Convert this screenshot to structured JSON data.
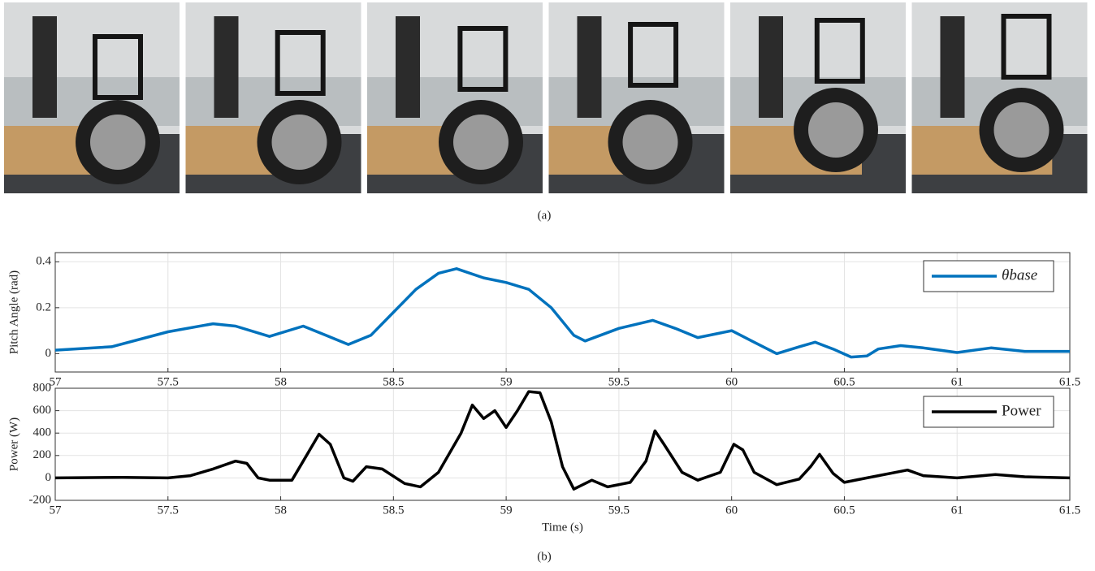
{
  "captions": [
    "(a)",
    "(b)"
  ],
  "chart_data": [
    {
      "type": "line",
      "ylabel": "Pitch Angle (rad)",
      "xlim": [
        57,
        61.5
      ],
      "ylim": [
        -0.08,
        0.44
      ],
      "xticks": [
        57,
        57.5,
        58,
        58.5,
        59,
        59.5,
        60,
        60.5,
        61,
        61.5
      ],
      "yticks": [
        0,
        0.2,
        0.4
      ],
      "grid": true,
      "legend": "upper right",
      "x": [
        57,
        57.25,
        57.5,
        57.7,
        57.8,
        57.95,
        58.1,
        58.2,
        58.3,
        58.4,
        58.5,
        58.6,
        58.7,
        58.78,
        58.9,
        59,
        59.1,
        59.2,
        59.3,
        59.35,
        59.5,
        59.65,
        59.75,
        59.85,
        60,
        60.1,
        60.2,
        60.3,
        60.37,
        60.45,
        60.53,
        60.6,
        60.65,
        60.75,
        60.85,
        61,
        61.15,
        61.3,
        61.5
      ],
      "series": [
        {
          "name": "θbase",
          "color": "#0072bd",
          "values": [
            0.015,
            0.03,
            0.095,
            0.13,
            0.12,
            0.075,
            0.12,
            0.08,
            0.04,
            0.08,
            0.18,
            0.28,
            0.35,
            0.37,
            0.33,
            0.31,
            0.28,
            0.2,
            0.08,
            0.055,
            0.11,
            0.145,
            0.11,
            0.07,
            0.1,
            0.05,
            0.0,
            0.03,
            0.05,
            0.02,
            -0.015,
            -0.01,
            0.02,
            0.035,
            0.025,
            0.005,
            0.025,
            0.01,
            0.01
          ]
        }
      ]
    },
    {
      "type": "line",
      "xlabel": "Time (s)",
      "ylabel": "Power (W)",
      "xlim": [
        57,
        61.5
      ],
      "ylim": [
        -200,
        800
      ],
      "xticks": [
        57,
        57.5,
        58,
        58.5,
        59,
        59.5,
        60,
        60.5,
        61,
        61.5
      ],
      "yticks": [
        -200,
        0,
        200,
        400,
        600,
        800
      ],
      "grid": true,
      "legend": "upper right",
      "x": [
        57,
        57.3,
        57.5,
        57.6,
        57.7,
        57.8,
        57.85,
        57.9,
        57.95,
        58.05,
        58.1,
        58.17,
        58.22,
        58.28,
        58.32,
        58.38,
        58.45,
        58.55,
        58.62,
        58.7,
        58.8,
        58.85,
        58.9,
        58.95,
        59,
        59.05,
        59.1,
        59.15,
        59.2,
        59.25,
        59.3,
        59.38,
        59.45,
        59.55,
        59.62,
        59.66,
        59.7,
        59.78,
        59.85,
        59.95,
        60.01,
        60.05,
        60.1,
        60.2,
        60.3,
        60.35,
        60.39,
        60.45,
        60.5,
        60.6,
        60.78,
        60.85,
        61,
        61.17,
        61.3,
        61.5
      ],
      "series": [
        {
          "name": "Power",
          "color": "#000000",
          "values": [
            0,
            5,
            0,
            20,
            80,
            150,
            130,
            0,
            -20,
            -20,
            150,
            390,
            300,
            0,
            -30,
            100,
            80,
            -50,
            -80,
            50,
            400,
            650,
            530,
            600,
            450,
            600,
            770,
            760,
            500,
            100,
            -100,
            -20,
            -80,
            -40,
            150,
            420,
            300,
            50,
            -20,
            50,
            300,
            250,
            50,
            -60,
            -10,
            100,
            210,
            40,
            -40,
            0,
            70,
            20,
            0,
            30,
            10,
            0
          ]
        }
      ]
    }
  ]
}
